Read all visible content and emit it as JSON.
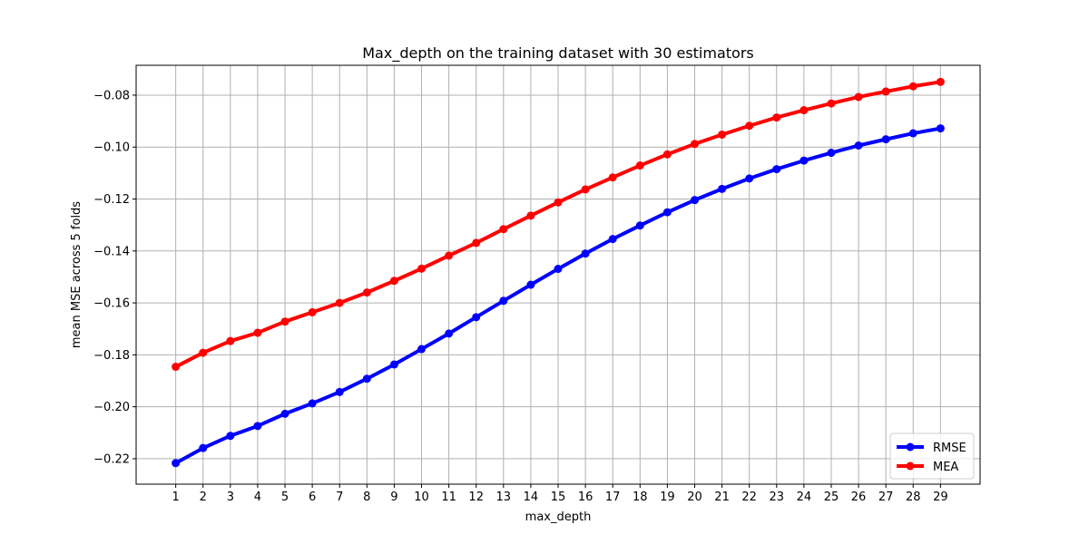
{
  "chart_data": {
    "type": "line",
    "title": "Max_depth on the training dataset with 30 estimators",
    "xlabel": "max_depth",
    "ylabel": "mean MSE across 5 folds",
    "x": [
      1,
      2,
      3,
      4,
      5,
      6,
      7,
      8,
      9,
      10,
      11,
      12,
      13,
      14,
      15,
      16,
      17,
      18,
      19,
      20,
      21,
      22,
      23,
      24,
      25,
      26,
      27,
      28,
      29
    ],
    "xlim": [
      -0.45,
      30.45
    ],
    "ylim": [
      -0.2298,
      -0.0685
    ],
    "yticks": [
      -0.22,
      -0.2,
      -0.18,
      -0.16,
      -0.14,
      -0.12,
      -0.1,
      -0.08
    ],
    "ytick_labels": [
      "−0.22",
      "−0.20",
      "−0.18",
      "−0.16",
      "−0.14",
      "−0.12",
      "−0.10",
      "−0.08"
    ],
    "grid": true,
    "legend_position": "lower-right",
    "series": [
      {
        "name": "RMSE",
        "color": "#0000ff",
        "values": [
          -0.2217,
          -0.2159,
          -0.2112,
          -0.2074,
          -0.2027,
          -0.1987,
          -0.1943,
          -0.1892,
          -0.1837,
          -0.1778,
          -0.1718,
          -0.1655,
          -0.1592,
          -0.153,
          -0.1469,
          -0.141,
          -0.1354,
          -0.1302,
          -0.1251,
          -0.1204,
          -0.1161,
          -0.1121,
          -0.1085,
          -0.1052,
          -0.1022,
          -0.0994,
          -0.097,
          -0.0947,
          -0.0928
        ]
      },
      {
        "name": "MEA",
        "color": "#ff0000",
        "values": [
          -0.1846,
          -0.1792,
          -0.1747,
          -0.1715,
          -0.1672,
          -0.1636,
          -0.16,
          -0.156,
          -0.1515,
          -0.1468,
          -0.1418,
          -0.1369,
          -0.1316,
          -0.1264,
          -0.1213,
          -0.1163,
          -0.1117,
          -0.1071,
          -0.1028,
          -0.0988,
          -0.0952,
          -0.0918,
          -0.0886,
          -0.0858,
          -0.0832,
          -0.0807,
          -0.0786,
          -0.0766,
          -0.0749
        ]
      }
    ]
  }
}
